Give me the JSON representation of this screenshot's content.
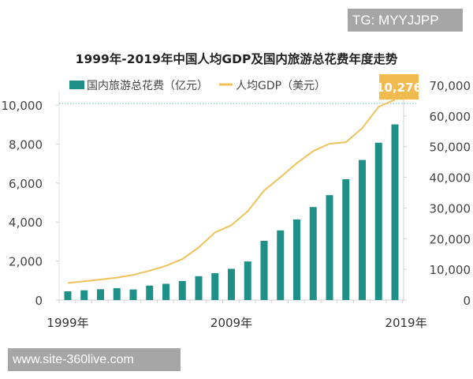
{
  "watermarks": {
    "top": "TG: MYYJJPP",
    "bottom": "www.site-360live.com"
  },
  "colors": {
    "bar": "#1f9088",
    "line": "#efc25a",
    "callout": "#f2bb4f",
    "axis": "#d0d0d0",
    "text": "#333333"
  },
  "chart_data": {
    "type": "bar+line",
    "title": "1999年-2019年中国人均GDP及国内旅游总花费年度走势",
    "legend": {
      "placement": "top",
      "bar_label": "国内旅游总花费（亿元）",
      "line_label": "人均GDP（美元）"
    },
    "years": [
      1999,
      2000,
      2001,
      2002,
      2003,
      2004,
      2005,
      2006,
      2007,
      2008,
      2009,
      2010,
      2011,
      2012,
      2013,
      2014,
      2015,
      2016,
      2017,
      2018,
      2019
    ],
    "x_tick_labels": [
      "1999年",
      "2009年",
      "2019年"
    ],
    "series": [
      {
        "name": "国内旅游总花费（亿元）",
        "type": "bar",
        "axis": "right",
        "values": [
          2832,
          3175,
          3522,
          3878,
          3442,
          4711,
          5286,
          6230,
          7771,
          8749,
          10184,
          12580,
          19305,
          22706,
          26276,
          30312,
          34195,
          39390,
          45661,
          51278,
          57251
        ]
      },
      {
        "name": "人均GDP（美元）",
        "type": "line",
        "axis": "left",
        "values": [
          873,
          959,
          1053,
          1148,
          1288,
          1508,
          1753,
          2099,
          2694,
          3468,
          3832,
          4550,
          5614,
          6301,
          7020,
          7636,
          8016,
          8094,
          8817,
          9905,
          10276
        ]
      }
    ],
    "left_axis": {
      "range": [
        0,
        10000
      ],
      "ticks": [
        "0",
        "2,000",
        "4,000",
        "6,000",
        "8,000",
        "10,000"
      ]
    },
    "right_axis": {
      "range": [
        0,
        70000
      ],
      "ticks": [
        "0",
        "10,000",
        "20,000",
        "30,000",
        "40,000",
        "50,000",
        "60,000",
        "70,000"
      ]
    },
    "annotation": {
      "label": "10,276",
      "year": 2019,
      "reference_line": "dotted"
    },
    "grid": false
  }
}
